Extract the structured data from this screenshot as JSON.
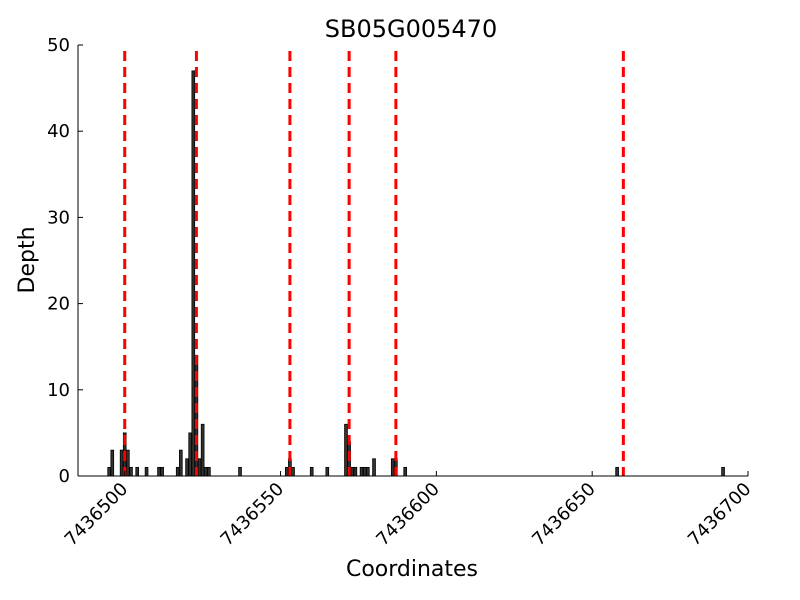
{
  "chart_data": {
    "type": "bar",
    "title": "SB05G005470",
    "xlabel": "Coordinates",
    "ylabel": "Depth",
    "xlim": [
      7436485,
      7436700
    ],
    "ylim": [
      0,
      50
    ],
    "x_ticks": [
      7436500,
      7436550,
      7436600,
      7436650,
      7436700
    ],
    "y_ticks": [
      0,
      10,
      20,
      30,
      40,
      50
    ],
    "grid": false,
    "bar_color": "#333333",
    "bar_edge_color": "#000000",
    "marker_line_color": "#ff0000",
    "marker_line_style": "dashed",
    "marker_lines_x": [
      7436500,
      7436523,
      7436553,
      7436572,
      7436587,
      7436660
    ],
    "series": [
      {
        "x": [
          7436495,
          7436496,
          7436499,
          7436500,
          7436501,
          7436502,
          7436504,
          7436507,
          7436511,
          7436512,
          7436517,
          7436518,
          7436520,
          7436521,
          7436522,
          7436523,
          7436524,
          7436525,
          7436526,
          7436527,
          7436537,
          7436552,
          7436553,
          7436554,
          7436560,
          7436565,
          7436571,
          7436572,
          7436573,
          7436574,
          7436576,
          7436577,
          7436578,
          7436580,
          7436586,
          7436587,
          7436590,
          7436658,
          7436692
        ],
        "values": [
          1,
          3,
          3,
          5,
          3,
          1,
          1,
          1,
          1,
          1,
          1,
          3,
          2,
          5,
          47,
          14,
          2,
          6,
          1,
          1,
          1,
          1,
          2,
          1,
          1,
          1,
          6,
          4,
          1,
          1,
          1,
          1,
          1,
          2,
          2,
          2,
          1,
          1,
          1
        ]
      }
    ]
  }
}
